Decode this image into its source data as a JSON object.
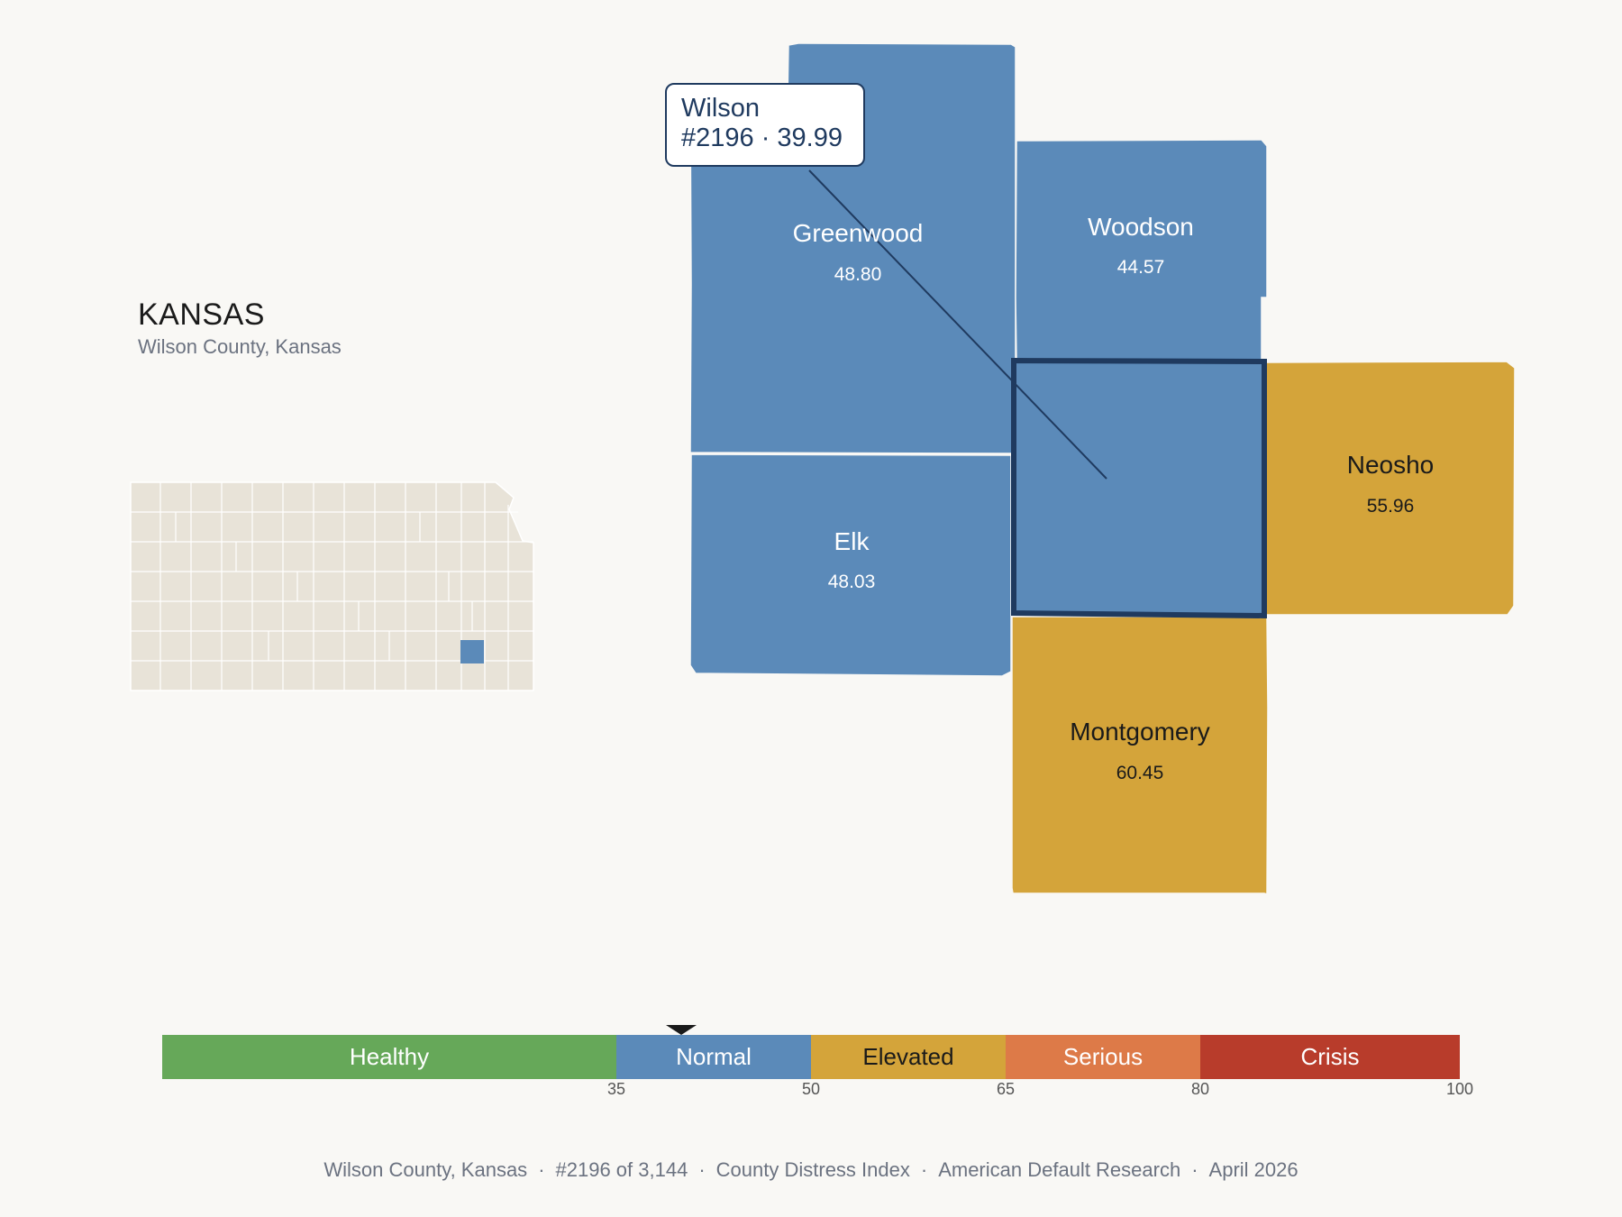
{
  "state": {
    "title": "KANSAS",
    "subtitle": "Wilson County, Kansas"
  },
  "tooltip": {
    "line1": "Wilson",
    "line2": "#2196 · 39.99"
  },
  "counties": [
    {
      "name": "Greenwood",
      "value": "48.80",
      "category": "Normal"
    },
    {
      "name": "Woodson",
      "value": "44.57",
      "category": "Normal"
    },
    {
      "name": "Elk",
      "value": "48.03",
      "category": "Normal"
    },
    {
      "name": "Wilson",
      "value": "39.99",
      "category": "Normal",
      "selected": true
    },
    {
      "name": "Neosho",
      "value": "55.96",
      "category": "Elevated"
    },
    {
      "name": "Montgomery",
      "value": "60.45",
      "category": "Elevated"
    }
  ],
  "scale": {
    "marker_value": 39.99,
    "segments": [
      {
        "label": "Healthy",
        "from": 0,
        "to": 35,
        "color": "#66a859"
      },
      {
        "label": "Normal",
        "from": 35,
        "to": 50,
        "color": "#5b8ab9"
      },
      {
        "label": "Elevated",
        "from": 50,
        "to": 65,
        "color": "#d4a43a"
      },
      {
        "label": "Serious",
        "from": 65,
        "to": 80,
        "color": "#dd7a48"
      },
      {
        "label": "Crisis",
        "from": 80,
        "to": 100,
        "color": "#b83c2b"
      }
    ],
    "ticks": [
      "35",
      "50",
      "65",
      "80",
      "100"
    ]
  },
  "footer": {
    "items": [
      "Wilson County, Kansas",
      "#2196 of 3,144",
      "County Distress Index",
      "American Default Research",
      "April 2026"
    ],
    "separator": "·"
  },
  "colors": {
    "normal": "#5b8ab9",
    "elevated": "#d4a43a",
    "selected_outline": "#1f3a5f",
    "inset_fill": "#e8e3d8"
  }
}
